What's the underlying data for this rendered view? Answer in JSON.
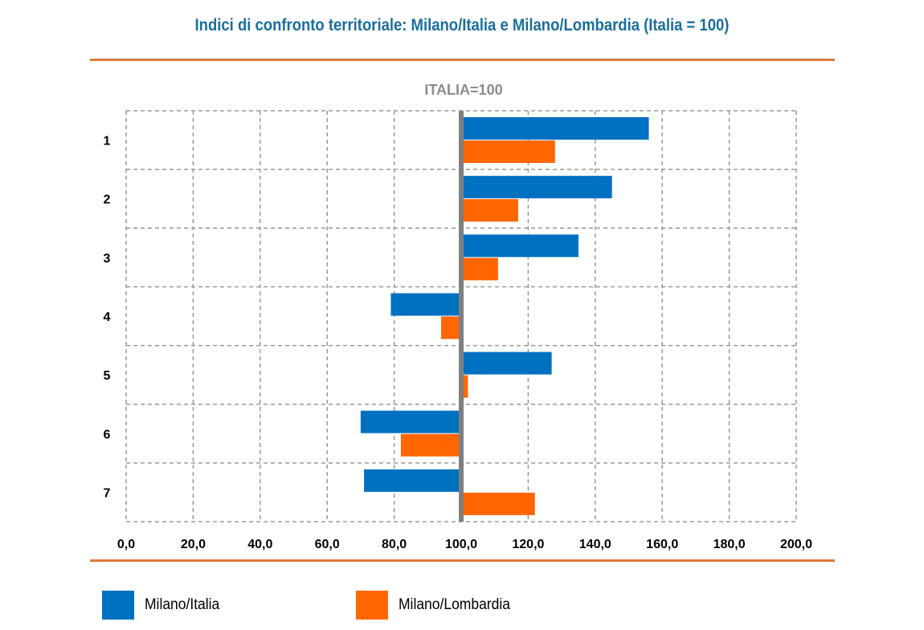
{
  "chart_data": {
    "type": "bar",
    "orientation": "horizontal",
    "title": "Indici di confronto territoriale: Milano/Italia e Milano/Lombardia (Italia = 100)",
    "reference_label": "ITALIA=100",
    "reference_value": 100,
    "categories": [
      "1",
      "2",
      "3",
      "4",
      "5",
      "6",
      "7"
    ],
    "series": [
      {
        "name": "Milano/Italia",
        "color": "#0070c0",
        "values": [
          156,
          145,
          135,
          79,
          127,
          70,
          71
        ]
      },
      {
        "name": "Milano/Lombardia",
        "color": "#ff6600",
        "values": [
          128,
          117,
          111,
          94,
          102,
          82,
          122
        ]
      }
    ],
    "x_ticks": [
      "0,0",
      "20,0",
      "40,0",
      "60,0",
      "80,0",
      "100,0",
      "120,0",
      "140,0",
      "160,0",
      "180,0",
      "200,0"
    ],
    "xlim": [
      0,
      200
    ],
    "grid": true,
    "legend_position": "bottom"
  },
  "colors": {
    "title": "#1a6e9e",
    "rule": "#e07a3a",
    "grid": "#999999",
    "reference_line": "#7f7f7f",
    "reference_label": "#8c8c8c"
  }
}
